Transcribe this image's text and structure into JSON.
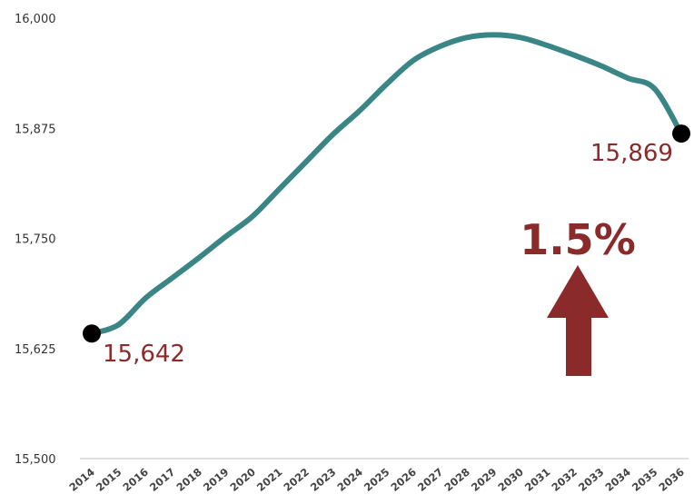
{
  "colors": {
    "line": "#3a8585",
    "accent": "#8b2a2a",
    "marker": "#000000",
    "axis": "#d6d6d6"
  },
  "chart_data": {
    "type": "line",
    "x": [
      "2014",
      "2015",
      "2016",
      "2017",
      "2018",
      "2019",
      "2020",
      "2021",
      "2022",
      "2023",
      "2024",
      "2025",
      "2026",
      "2027",
      "2028",
      "2029",
      "2030",
      "2031",
      "2032",
      "2033",
      "2034",
      "2035",
      "2036"
    ],
    "series": [
      {
        "values": [
          15642,
          15652,
          15682,
          15705,
          15728,
          15752,
          15775,
          15806,
          15837,
          15868,
          15895,
          15925,
          15952,
          15968,
          15978,
          15981,
          15978,
          15969,
          15958,
          15946,
          15932,
          15920,
          15869
        ]
      }
    ],
    "yticks": [
      "15,500",
      "15,625",
      "15,750",
      "15,875",
      "16,000"
    ],
    "ylim": [
      15500,
      16000
    ],
    "grid": false,
    "annotations": {
      "start_value": "15,642",
      "end_value": "15,869",
      "change_percent": "1.5%",
      "change_direction": "up"
    }
  }
}
